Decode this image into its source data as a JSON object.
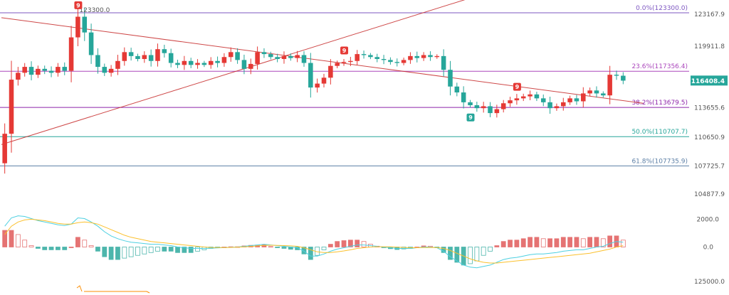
{
  "chart_data": {
    "type": "candlestick",
    "price_axis": {
      "ticks": [
        "123167.9",
        "119911.8",
        "116408.4",
        "113655.6",
        "110650.9",
        "107725.7",
        "104877.9"
      ],
      "range": [
        104000,
        124600
      ]
    },
    "current_price": {
      "label": "116408.4",
      "value": 116408.4,
      "color": "#26a69a"
    },
    "peak_label": {
      "text": "123300.0",
      "index": 11,
      "value": 123300
    },
    "fib_levels": [
      {
        "label": "0.0%(123300.0)",
        "value": 123300,
        "color": "#7e57c2"
      },
      {
        "label": "23.6%(117356.4)",
        "value": 117356.4,
        "color": "#ab47bc"
      },
      {
        "label": "38.2%(113679.5)",
        "value": 113679.5,
        "color": "#8e24aa"
      },
      {
        "label": "50.0%(110707.7)",
        "value": 110707.7,
        "color": "#26a69a"
      },
      {
        "label": "61.8%(107735.9)",
        "value": 107735.9,
        "color": "#5c7fa6"
      }
    ],
    "trendlines": [
      {
        "from": [
          0,
          122800
        ],
        "to": [
          96,
          114100
        ],
        "color": "#c62828"
      },
      {
        "from": [
          0,
          109900
        ],
        "to": [
          70,
          124800
        ],
        "color": "#c62828"
      }
    ],
    "td_markers": [
      {
        "index": 11,
        "label": "9",
        "position": "above",
        "color": "#e53935"
      },
      {
        "index": 51,
        "label": "9",
        "position": "above",
        "color": "#e53935"
      },
      {
        "index": 70,
        "label": "9",
        "position": "below",
        "color": "#26a69a"
      },
      {
        "index": 77,
        "label": "9",
        "position": "above",
        "color": "#e53935"
      }
    ],
    "close": [
      111000,
      116500,
      117200,
      117800,
      117000,
      117600,
      117400,
      117200,
      117800,
      117400,
      120800,
      122900,
      121300,
      119000,
      117800,
      117200,
      117600,
      118400,
      119300,
      118900,
      118600,
      119000,
      118400,
      119600,
      119200,
      118200,
      118000,
      118400,
      118000,
      118200,
      118000,
      118400,
      118200,
      118800,
      119300,
      118500,
      117600,
      118100,
      119300,
      119100,
      118800,
      118600,
      118900,
      118700,
      119000,
      118200,
      115700,
      116100,
      116700,
      117900,
      118200,
      118300,
      118400,
      119100,
      119000,
      118800,
      118600,
      118500,
      118300,
      118200,
      118500,
      118900,
      118700,
      119000,
      118800,
      118900,
      117500,
      115800,
      115200,
      114200,
      113900,
      113600,
      113800,
      113100,
      113500,
      114100,
      114400,
      114600,
      114800,
      115000,
      114600,
      114200,
      113600,
      113800,
      114200,
      114600,
      114300,
      115100,
      115400,
      115100,
      114900,
      117000,
      116900,
      116400
    ],
    "macd": {
      "zero_label": "0.0",
      "top_label": "2000.0",
      "range": [
        -3200,
        3200
      ],
      "dif": [
        1500,
        2100,
        2250,
        2200,
        2050,
        1900,
        1800,
        1700,
        1600,
        1550,
        1650,
        2100,
        2050,
        1800,
        1500,
        1100,
        800,
        600,
        450,
        350,
        300,
        250,
        200,
        200,
        150,
        100,
        0,
        -50,
        -100,
        -100,
        -100,
        -80,
        -60,
        -40,
        -20,
        0,
        50,
        100,
        150,
        200,
        150,
        100,
        50,
        0,
        -50,
        -300,
        -650,
        -650,
        -500,
        -300,
        -150,
        -50,
        50,
        150,
        150,
        100,
        50,
        0,
        -50,
        -100,
        -100,
        -100,
        -50,
        0,
        0,
        -50,
        -300,
        -700,
        -1000,
        -1300,
        -1450,
        -1500,
        -1400,
        -1300,
        -1100,
        -900,
        -800,
        -750,
        -650,
        -550,
        -500,
        -500,
        -450,
        -400,
        -300,
        -250,
        -200,
        -200,
        -100,
        0,
        50,
        250,
        400,
        350
      ],
      "dea": [
        900,
        1500,
        1800,
        1950,
        2000,
        1950,
        1900,
        1800,
        1700,
        1650,
        1650,
        1750,
        1800,
        1750,
        1650,
        1450,
        1250,
        1050,
        850,
        700,
        600,
        500,
        400,
        350,
        300,
        250,
        200,
        150,
        100,
        50,
        0,
        -30,
        -40,
        -40,
        -30,
        -10,
        10,
        40,
        80,
        120,
        130,
        120,
        100,
        80,
        50,
        -50,
        -200,
        -350,
        -400,
        -400,
        -350,
        -280,
        -200,
        -100,
        -50,
        0,
        20,
        20,
        10,
        -10,
        -30,
        -50,
        -50,
        -40,
        -30,
        -40,
        -100,
        -250,
        -450,
        -650,
        -850,
        -1000,
        -1100,
        -1150,
        -1150,
        -1100,
        -1050,
        -1000,
        -950,
        -900,
        -850,
        -800,
        -750,
        -700,
        -650,
        -600,
        -550,
        -500,
        -450,
        -350,
        -250,
        -150,
        0,
        100
      ]
    },
    "lower_panel": {
      "label": "125000.0"
    }
  }
}
